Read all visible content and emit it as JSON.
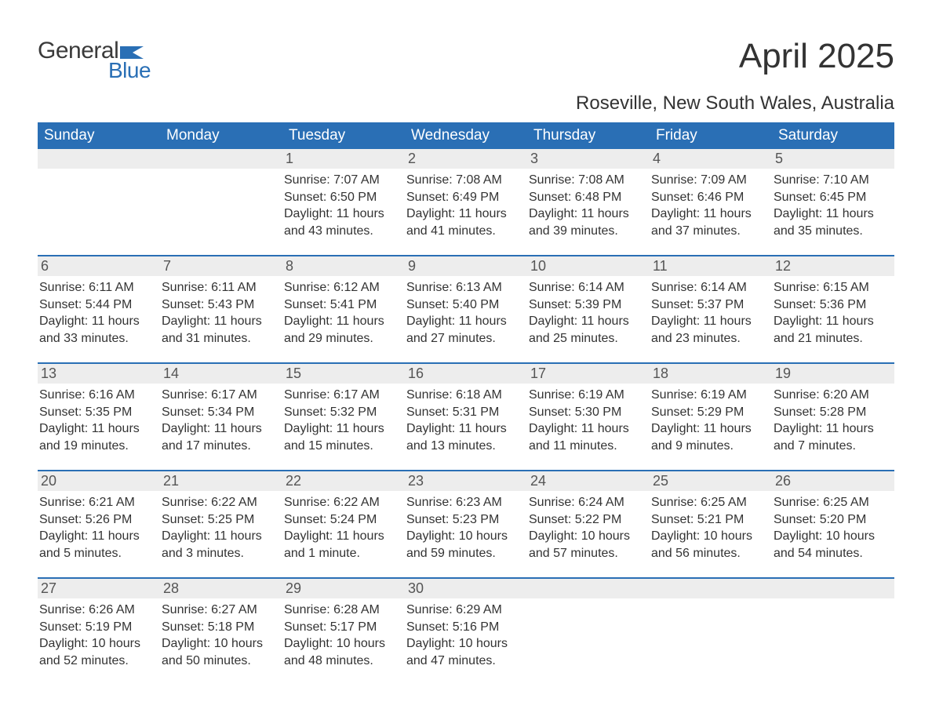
{
  "logo": {
    "word1": "General",
    "word2": "Blue",
    "brand_color": "#2a6fb5",
    "text_color": "#3a3a3a"
  },
  "title": "April 2025",
  "location": "Roseville, New South Wales, Australia",
  "weekday_header_bg": "#2a6fb5",
  "daynum_bg": "#ededed",
  "week_divider_color": "#2a6fb5",
  "weekdays": [
    "Sunday",
    "Monday",
    "Tuesday",
    "Wednesday",
    "Thursday",
    "Friday",
    "Saturday"
  ],
  "weeks": [
    [
      {
        "day": "",
        "sunrise": "",
        "sunset": "",
        "daylight": ""
      },
      {
        "day": "",
        "sunrise": "",
        "sunset": "",
        "daylight": ""
      },
      {
        "day": "1",
        "sunrise": "Sunrise: 7:07 AM",
        "sunset": "Sunset: 6:50 PM",
        "daylight": "Daylight: 11 hours and 43 minutes."
      },
      {
        "day": "2",
        "sunrise": "Sunrise: 7:08 AM",
        "sunset": "Sunset: 6:49 PM",
        "daylight": "Daylight: 11 hours and 41 minutes."
      },
      {
        "day": "3",
        "sunrise": "Sunrise: 7:08 AM",
        "sunset": "Sunset: 6:48 PM",
        "daylight": "Daylight: 11 hours and 39 minutes."
      },
      {
        "day": "4",
        "sunrise": "Sunrise: 7:09 AM",
        "sunset": "Sunset: 6:46 PM",
        "daylight": "Daylight: 11 hours and 37 minutes."
      },
      {
        "day": "5",
        "sunrise": "Sunrise: 7:10 AM",
        "sunset": "Sunset: 6:45 PM",
        "daylight": "Daylight: 11 hours and 35 minutes."
      }
    ],
    [
      {
        "day": "6",
        "sunrise": "Sunrise: 6:11 AM",
        "sunset": "Sunset: 5:44 PM",
        "daylight": "Daylight: 11 hours and 33 minutes."
      },
      {
        "day": "7",
        "sunrise": "Sunrise: 6:11 AM",
        "sunset": "Sunset: 5:43 PM",
        "daylight": "Daylight: 11 hours and 31 minutes."
      },
      {
        "day": "8",
        "sunrise": "Sunrise: 6:12 AM",
        "sunset": "Sunset: 5:41 PM",
        "daylight": "Daylight: 11 hours and 29 minutes."
      },
      {
        "day": "9",
        "sunrise": "Sunrise: 6:13 AM",
        "sunset": "Sunset: 5:40 PM",
        "daylight": "Daylight: 11 hours and 27 minutes."
      },
      {
        "day": "10",
        "sunrise": "Sunrise: 6:14 AM",
        "sunset": "Sunset: 5:39 PM",
        "daylight": "Daylight: 11 hours and 25 minutes."
      },
      {
        "day": "11",
        "sunrise": "Sunrise: 6:14 AM",
        "sunset": "Sunset: 5:37 PM",
        "daylight": "Daylight: 11 hours and 23 minutes."
      },
      {
        "day": "12",
        "sunrise": "Sunrise: 6:15 AM",
        "sunset": "Sunset: 5:36 PM",
        "daylight": "Daylight: 11 hours and 21 minutes."
      }
    ],
    [
      {
        "day": "13",
        "sunrise": "Sunrise: 6:16 AM",
        "sunset": "Sunset: 5:35 PM",
        "daylight": "Daylight: 11 hours and 19 minutes."
      },
      {
        "day": "14",
        "sunrise": "Sunrise: 6:17 AM",
        "sunset": "Sunset: 5:34 PM",
        "daylight": "Daylight: 11 hours and 17 minutes."
      },
      {
        "day": "15",
        "sunrise": "Sunrise: 6:17 AM",
        "sunset": "Sunset: 5:32 PM",
        "daylight": "Daylight: 11 hours and 15 minutes."
      },
      {
        "day": "16",
        "sunrise": "Sunrise: 6:18 AM",
        "sunset": "Sunset: 5:31 PM",
        "daylight": "Daylight: 11 hours and 13 minutes."
      },
      {
        "day": "17",
        "sunrise": "Sunrise: 6:19 AM",
        "sunset": "Sunset: 5:30 PM",
        "daylight": "Daylight: 11 hours and 11 minutes."
      },
      {
        "day": "18",
        "sunrise": "Sunrise: 6:19 AM",
        "sunset": "Sunset: 5:29 PM",
        "daylight": "Daylight: 11 hours and 9 minutes."
      },
      {
        "day": "19",
        "sunrise": "Sunrise: 6:20 AM",
        "sunset": "Sunset: 5:28 PM",
        "daylight": "Daylight: 11 hours and 7 minutes."
      }
    ],
    [
      {
        "day": "20",
        "sunrise": "Sunrise: 6:21 AM",
        "sunset": "Sunset: 5:26 PM",
        "daylight": "Daylight: 11 hours and 5 minutes."
      },
      {
        "day": "21",
        "sunrise": "Sunrise: 6:22 AM",
        "sunset": "Sunset: 5:25 PM",
        "daylight": "Daylight: 11 hours and 3 minutes."
      },
      {
        "day": "22",
        "sunrise": "Sunrise: 6:22 AM",
        "sunset": "Sunset: 5:24 PM",
        "daylight": "Daylight: 11 hours and 1 minute."
      },
      {
        "day": "23",
        "sunrise": "Sunrise: 6:23 AM",
        "sunset": "Sunset: 5:23 PM",
        "daylight": "Daylight: 10 hours and 59 minutes."
      },
      {
        "day": "24",
        "sunrise": "Sunrise: 6:24 AM",
        "sunset": "Sunset: 5:22 PM",
        "daylight": "Daylight: 10 hours and 57 minutes."
      },
      {
        "day": "25",
        "sunrise": "Sunrise: 6:25 AM",
        "sunset": "Sunset: 5:21 PM",
        "daylight": "Daylight: 10 hours and 56 minutes."
      },
      {
        "day": "26",
        "sunrise": "Sunrise: 6:25 AM",
        "sunset": "Sunset: 5:20 PM",
        "daylight": "Daylight: 10 hours and 54 minutes."
      }
    ],
    [
      {
        "day": "27",
        "sunrise": "Sunrise: 6:26 AM",
        "sunset": "Sunset: 5:19 PM",
        "daylight": "Daylight: 10 hours and 52 minutes."
      },
      {
        "day": "28",
        "sunrise": "Sunrise: 6:27 AM",
        "sunset": "Sunset: 5:18 PM",
        "daylight": "Daylight: 10 hours and 50 minutes."
      },
      {
        "day": "29",
        "sunrise": "Sunrise: 6:28 AM",
        "sunset": "Sunset: 5:17 PM",
        "daylight": "Daylight: 10 hours and 48 minutes."
      },
      {
        "day": "30",
        "sunrise": "Sunrise: 6:29 AM",
        "sunset": "Sunset: 5:16 PM",
        "daylight": "Daylight: 10 hours and 47 minutes."
      },
      {
        "day": "",
        "sunrise": "",
        "sunset": "",
        "daylight": ""
      },
      {
        "day": "",
        "sunrise": "",
        "sunset": "",
        "daylight": ""
      },
      {
        "day": "",
        "sunrise": "",
        "sunset": "",
        "daylight": ""
      }
    ]
  ]
}
